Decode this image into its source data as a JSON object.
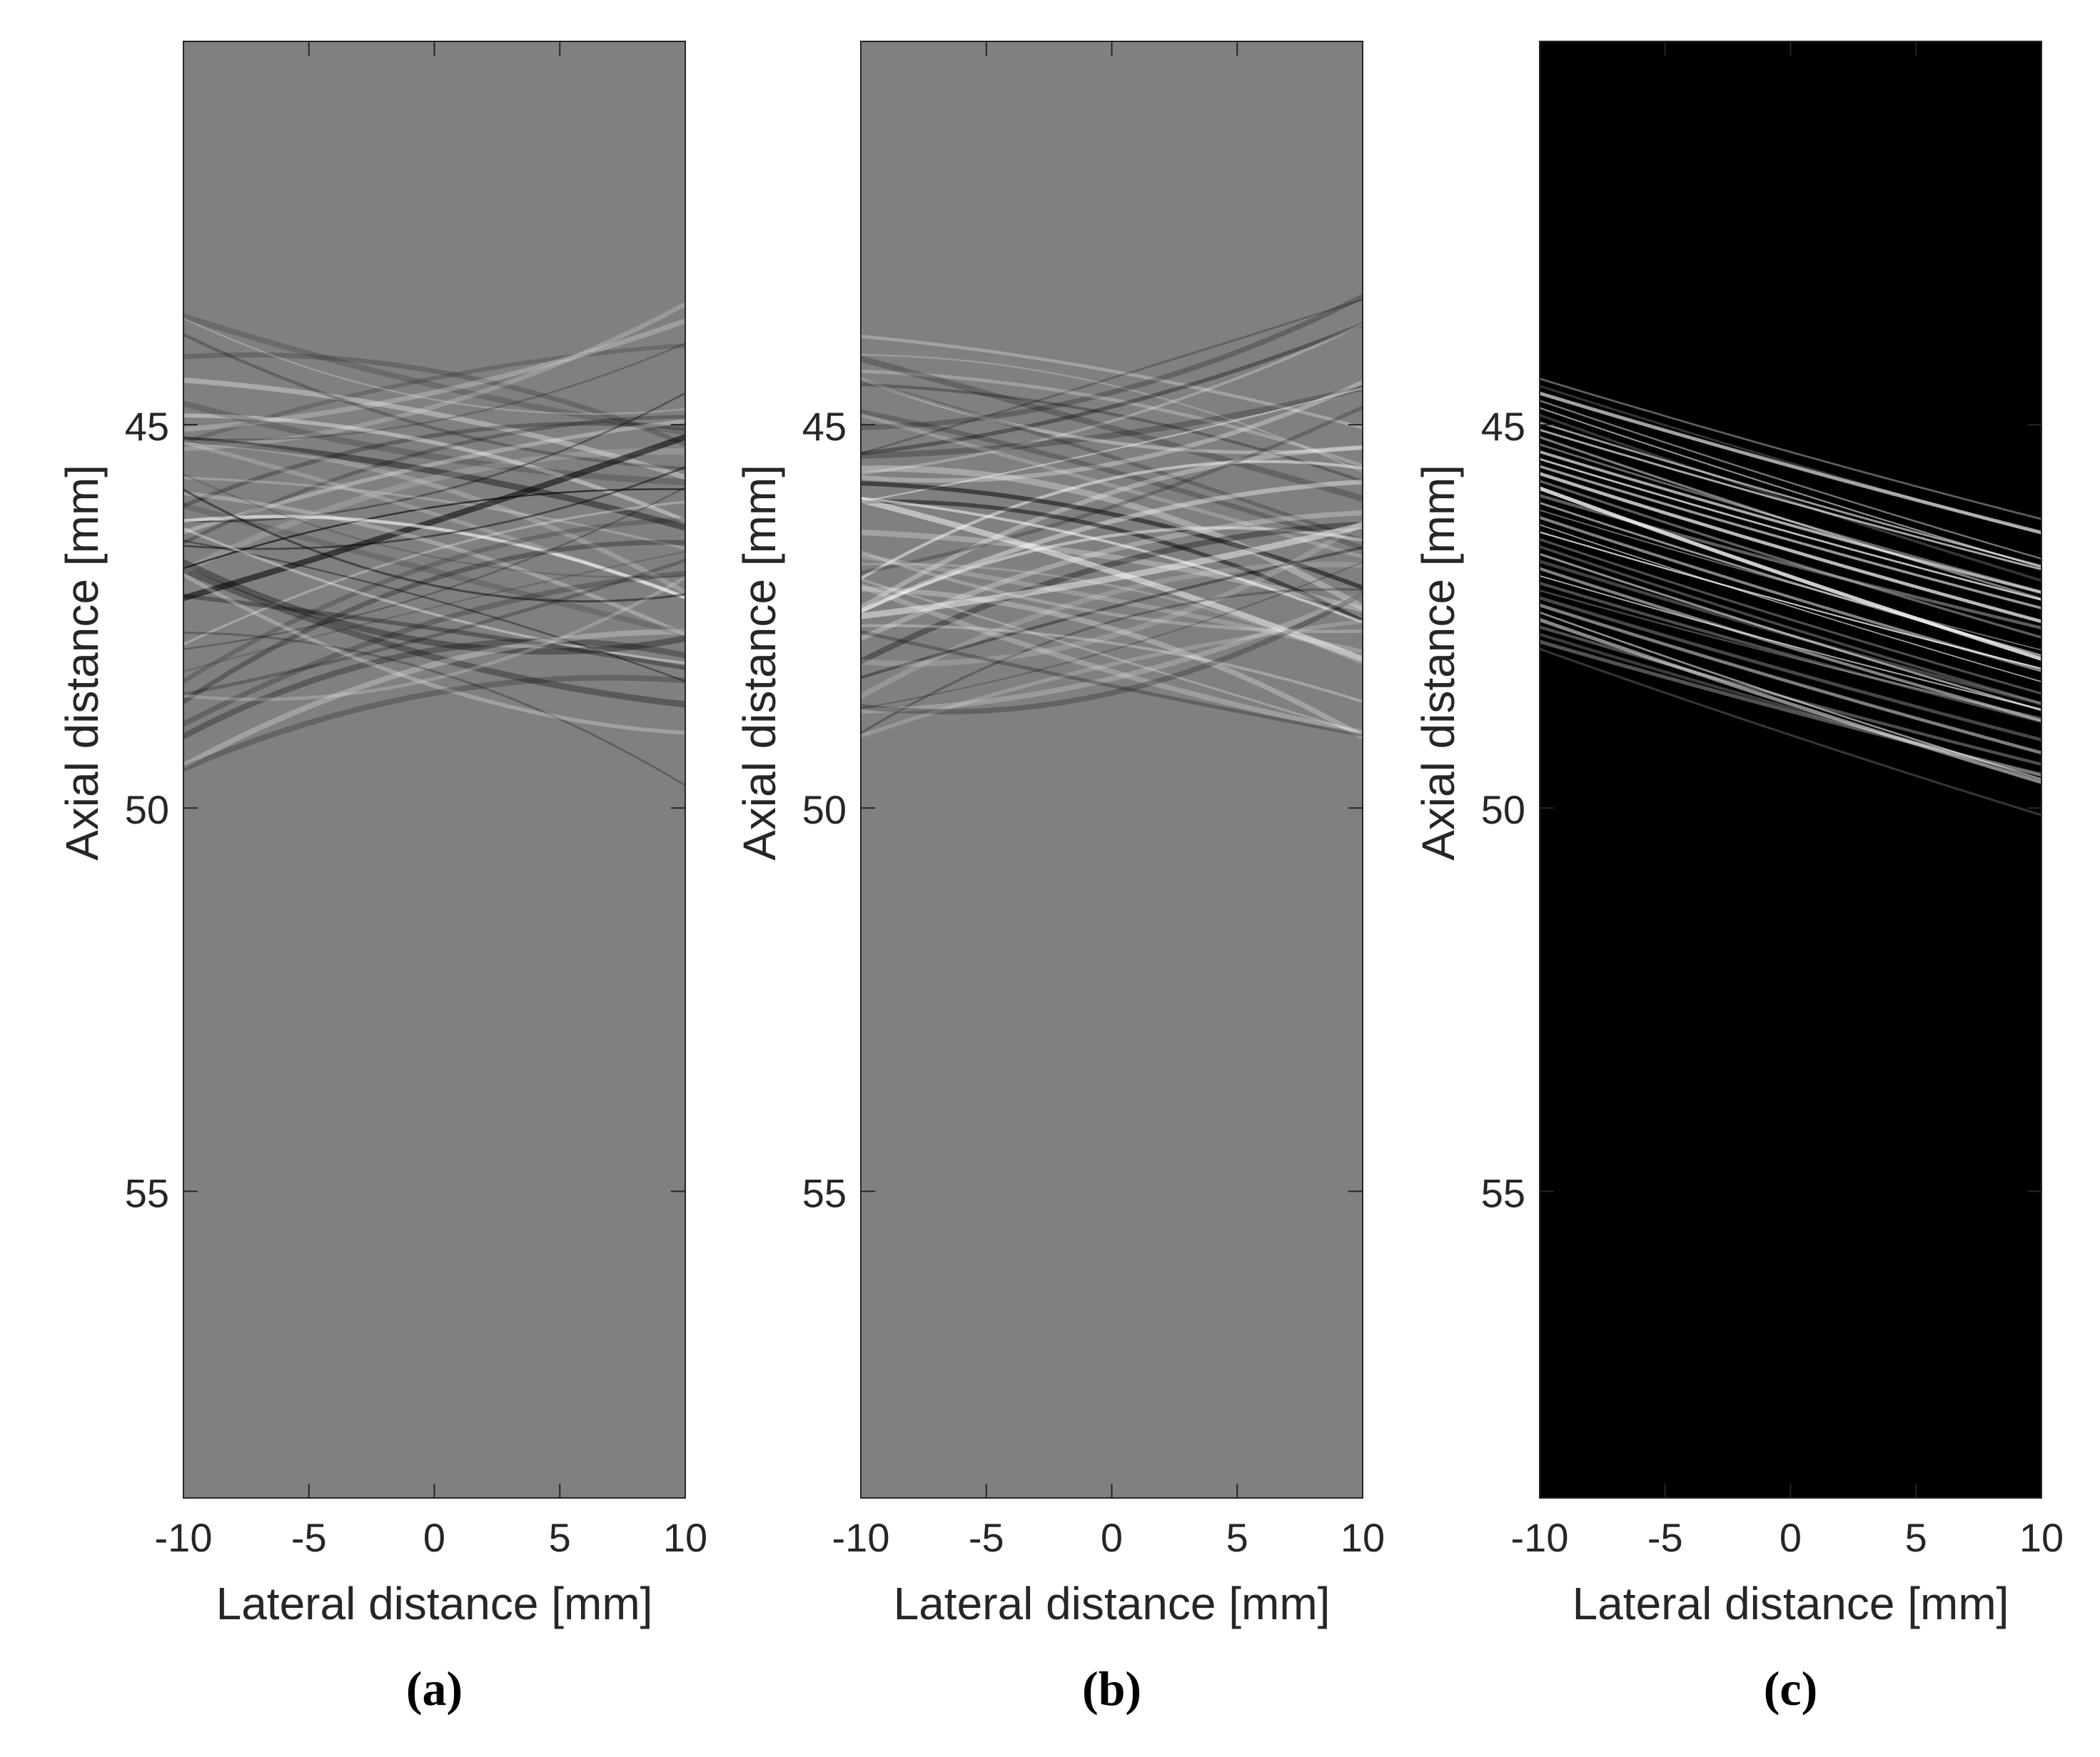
{
  "chart_data": [
    {
      "type": "heatmap",
      "caption": "(a)",
      "xlabel": "Lateral distance [mm]",
      "ylabel": "Axial distance [mm]",
      "xlim": [
        -10,
        10
      ],
      "ylim": [
        40,
        59
      ],
      "x_ticks": [
        -10,
        -5,
        0,
        5,
        10
      ],
      "y_ticks": [
        45,
        50,
        55
      ],
      "background": "#808080",
      "colormap": "gray",
      "signal_band": {
        "axial_range_mm": [
          44.3,
          48.5
        ],
        "pattern": "crossing-wavefronts"
      }
    },
    {
      "type": "heatmap",
      "caption": "(b)",
      "xlabel": "Lateral distance [mm]",
      "ylabel": "Axial distance [mm]",
      "xlim": [
        -10,
        10
      ],
      "ylim": [
        40,
        59
      ],
      "x_ticks": [
        -10,
        -5,
        0,
        5,
        10
      ],
      "y_ticks": [
        45,
        50,
        55
      ],
      "background": "#808080",
      "colormap": "gray",
      "signal_band": {
        "axial_range_mm": [
          44.3,
          48.5
        ],
        "pattern": "crossing-wavefronts"
      }
    },
    {
      "type": "heatmap",
      "caption": "(c)",
      "xlabel": "Lateral distance [mm]",
      "ylabel": "Axial distance [mm]",
      "xlim": [
        -10,
        10
      ],
      "ylim": [
        40,
        59
      ],
      "x_ticks": [
        -10,
        -5,
        0,
        5,
        10
      ],
      "y_ticks": [
        45,
        50,
        55
      ],
      "background": "#000000",
      "colormap": "gray",
      "signal_band": {
        "axial_range_mm": [
          44.4,
          49.1
        ],
        "pattern": "tilted-wavefront"
      }
    }
  ]
}
